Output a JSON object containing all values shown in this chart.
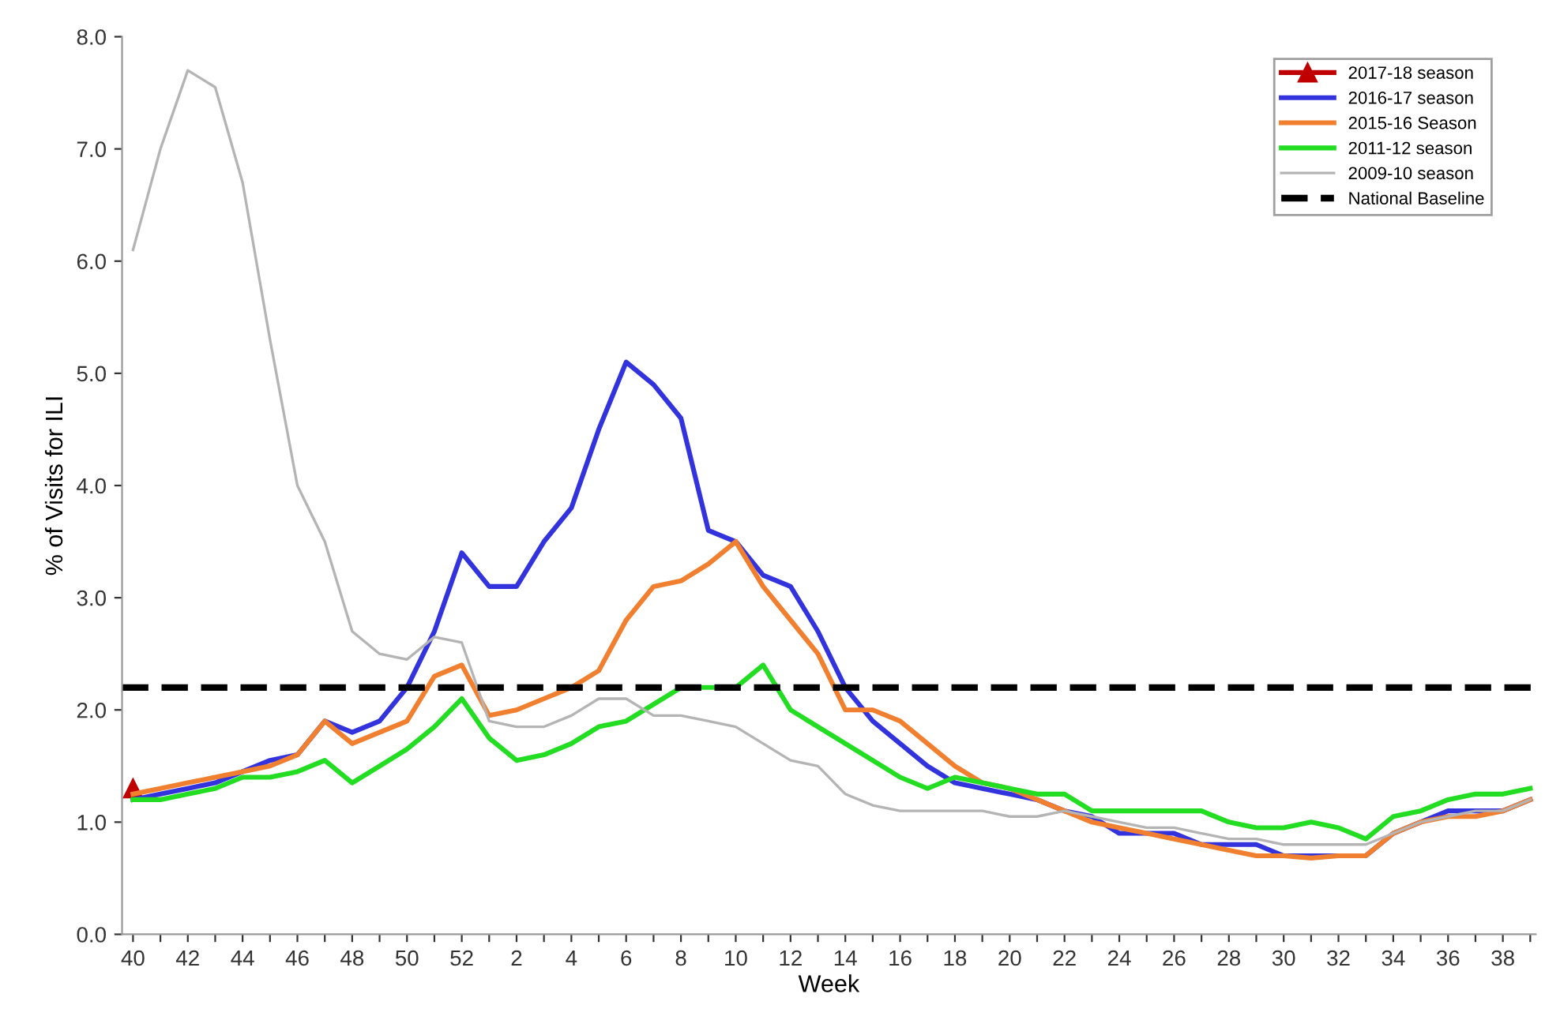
{
  "chart_data": {
    "type": "line",
    "xlabel": "Week",
    "ylabel": "% of Visits for ILI",
    "categories": [
      "40",
      null,
      "42",
      null,
      "44",
      null,
      "46",
      null,
      "48",
      null,
      "50",
      null,
      "52",
      null,
      "2",
      null,
      "4",
      null,
      "6",
      null,
      "8",
      null,
      "10",
      null,
      "12",
      null,
      "14",
      null,
      "16",
      null,
      "18",
      null,
      "20",
      null,
      "22",
      null,
      "24",
      null,
      "26",
      null,
      "28",
      null,
      "30",
      null,
      "32",
      null,
      "34",
      null,
      "36",
      null,
      "38",
      null
    ],
    "series": [
      {
        "name": "2017-18 season",
        "color": "#c00000",
        "marker": "triangle",
        "values": [
          1.3,
          null,
          null,
          null,
          null,
          null,
          null,
          null,
          null,
          null,
          null,
          null,
          null,
          null,
          null,
          null,
          null,
          null,
          null,
          null,
          null,
          null,
          null,
          null,
          null,
          null,
          null,
          null,
          null,
          null,
          null,
          null,
          null,
          null,
          null,
          null,
          null,
          null,
          null,
          null,
          null,
          null,
          null,
          null,
          null,
          null,
          null,
          null,
          null,
          null,
          null,
          null
        ]
      },
      {
        "name": "2016-17 season",
        "color": "#3333dd",
        "values": [
          1.2,
          1.25,
          1.3,
          1.35,
          1.45,
          1.55,
          1.6,
          1.9,
          1.8,
          1.9,
          2.2,
          2.7,
          3.4,
          3.1,
          3.1,
          3.5,
          3.8,
          4.5,
          5.1,
          4.9,
          4.6,
          3.6,
          3.5,
          3.2,
          3.1,
          2.7,
          2.2,
          1.9,
          1.7,
          1.5,
          1.35,
          1.3,
          1.25,
          1.2,
          1.1,
          1.05,
          0.9,
          0.9,
          0.9,
          0.8,
          0.8,
          0.8,
          0.7,
          0.7,
          0.7,
          0.7,
          0.9,
          1.0,
          1.1,
          1.1,
          1.1,
          1.2
        ]
      },
      {
        "name": "2015-16 Season",
        "color": "#f08030",
        "values": [
          1.25,
          1.3,
          1.35,
          1.4,
          1.45,
          1.5,
          1.6,
          1.9,
          1.7,
          1.8,
          1.9,
          2.3,
          2.4,
          1.95,
          2.0,
          2.1,
          2.2,
          2.35,
          2.8,
          3.1,
          3.15,
          3.3,
          3.5,
          3.1,
          2.8,
          2.5,
          2.0,
          2.0,
          1.9,
          1.7,
          1.5,
          1.35,
          1.3,
          1.2,
          1.1,
          1.0,
          0.95,
          0.9,
          0.85,
          0.8,
          0.75,
          0.7,
          0.7,
          0.68,
          0.7,
          0.7,
          0.9,
          1.0,
          1.05,
          1.05,
          1.1,
          1.2
        ]
      },
      {
        "name": "2011-12 season",
        "color": "#22dd22",
        "values": [
          1.2,
          1.2,
          1.25,
          1.3,
          1.4,
          1.4,
          1.45,
          1.55,
          1.35,
          1.5,
          1.65,
          1.85,
          2.1,
          1.75,
          1.55,
          1.6,
          1.7,
          1.85,
          1.9,
          2.05,
          2.2,
          2.2,
          2.2,
          2.4,
          2.0,
          1.85,
          1.7,
          1.55,
          1.4,
          1.3,
          1.4,
          1.35,
          1.3,
          1.25,
          1.25,
          1.1,
          1.1,
          1.1,
          1.1,
          1.1,
          1.0,
          0.95,
          0.95,
          1.0,
          0.95,
          0.85,
          1.05,
          1.1,
          1.2,
          1.25,
          1.25,
          1.3
        ]
      },
      {
        "name": "2009-10 season",
        "color": "#b4b4b4",
        "values": [
          6.1,
          7.0,
          7.7,
          7.55,
          6.7,
          5.3,
          4.0,
          3.5,
          2.7,
          2.5,
          2.45,
          2.65,
          2.6,
          1.9,
          1.85,
          1.85,
          1.95,
          2.1,
          2.1,
          1.95,
          1.95,
          1.9,
          1.85,
          1.7,
          1.55,
          1.5,
          1.25,
          1.15,
          1.1,
          1.1,
          1.1,
          1.1,
          1.05,
          1.05,
          1.1,
          1.05,
          1.0,
          0.95,
          0.95,
          0.9,
          0.85,
          0.85,
          0.8,
          0.8,
          0.8,
          0.8,
          0.9,
          1.0,
          1.05,
          1.1,
          1.1,
          1.2
        ]
      }
    ],
    "ref_lines": [
      {
        "axis": "y",
        "value": 2.2,
        "label": "National Baseline",
        "color": "#000000",
        "line_style": "dashed"
      }
    ],
    "ylim": [
      0,
      8
    ],
    "yticks": [
      {
        "value": 0,
        "label": "0.0"
      },
      {
        "value": 1,
        "label": "1.0"
      },
      {
        "value": 2,
        "label": "2.0"
      },
      {
        "value": 3,
        "label": "3.0"
      },
      {
        "value": 4,
        "label": "4.0"
      },
      {
        "value": 5,
        "label": "5.0"
      },
      {
        "value": 6,
        "label": "6.0"
      },
      {
        "value": 7,
        "label": "7.0"
      },
      {
        "value": 8,
        "label": "8.0"
      }
    ],
    "legend": "top right",
    "grid": false,
    "line_style": "solid"
  }
}
